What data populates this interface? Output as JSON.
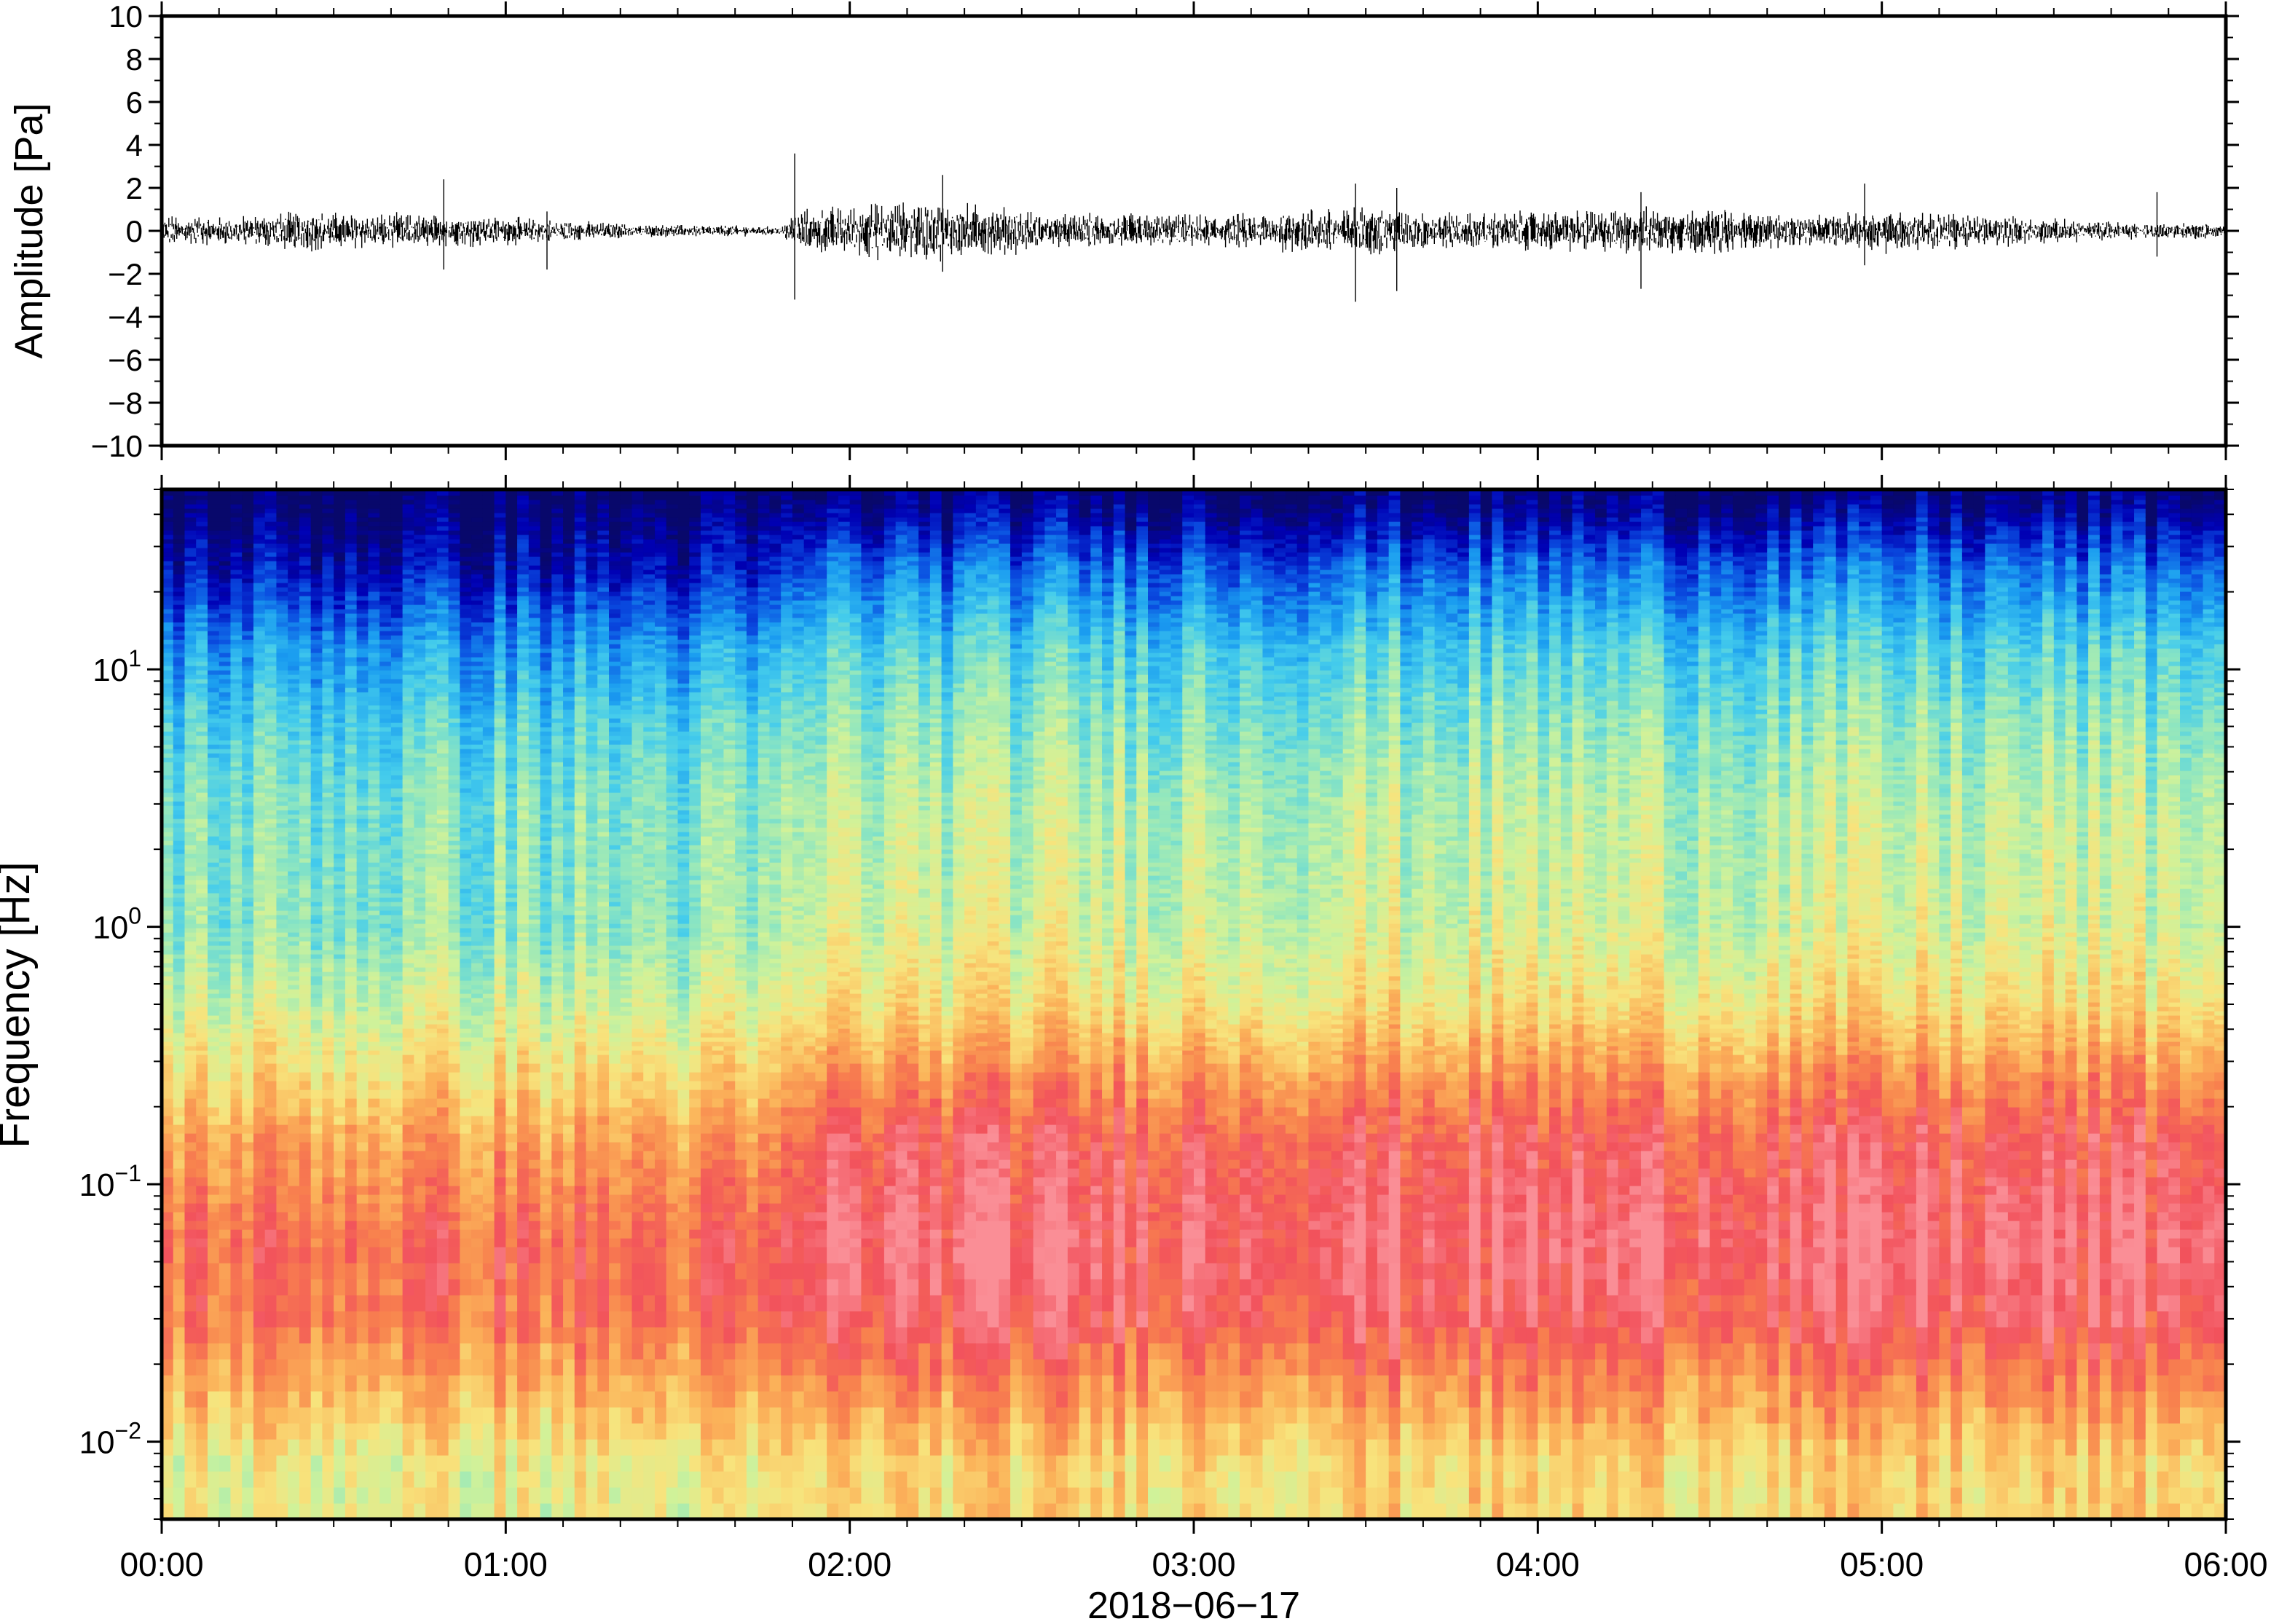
{
  "chart_data": [
    {
      "type": "line",
      "panel": "waveform",
      "xlabel": "",
      "ylabel": "Amplitude [Pa]",
      "ylim": [
        -10,
        10
      ],
      "y_ticks": [
        "10",
        "8",
        "6",
        "4",
        "2",
        "0",
        "−2",
        "−4",
        "−6",
        "−8",
        "−10"
      ],
      "x_range_hours": [
        0,
        6
      ],
      "grid": false,
      "line_color": "#000000",
      "envelope": {
        "times_hours": [
          0.0,
          0.2,
          0.4,
          0.6,
          0.8,
          1.0,
          1.2,
          1.4,
          1.6,
          1.8,
          1.84,
          2.0,
          2.2,
          2.4,
          2.6,
          2.8,
          3.0,
          3.2,
          3.4,
          3.6,
          3.8,
          4.0,
          4.2,
          4.4,
          4.6,
          4.8,
          5.0,
          5.2,
          5.4,
          5.6,
          5.8,
          6.0
        ],
        "amplitude_pa": [
          0.8,
          0.7,
          1.0,
          0.9,
          0.8,
          0.7,
          0.5,
          0.3,
          0.3,
          0.2,
          1.0,
          1.3,
          1.5,
          1.3,
          0.8,
          0.9,
          0.8,
          0.9,
          1.3,
          1.1,
          0.9,
          1.0,
          1.1,
          1.2,
          1.0,
          0.7,
          1.1,
          0.9,
          0.7,
          0.5,
          0.4,
          0.4
        ]
      },
      "spikes": [
        {
          "t_hours": 0.82,
          "max": 2.4,
          "min": -1.8
        },
        {
          "t_hours": 1.12,
          "max": 0.9,
          "min": -1.8
        },
        {
          "t_hours": 1.84,
          "max": 3.6,
          "min": -3.2
        },
        {
          "t_hours": 2.27,
          "max": 2.6,
          "min": -1.9
        },
        {
          "t_hours": 3.47,
          "max": 2.2,
          "min": -3.3
        },
        {
          "t_hours": 3.59,
          "max": 2.0,
          "min": -2.8
        },
        {
          "t_hours": 4.3,
          "max": 1.8,
          "min": -2.7
        },
        {
          "t_hours": 4.95,
          "max": 2.2,
          "min": -1.6
        },
        {
          "t_hours": 5.8,
          "max": 1.8,
          "min": -1.2
        }
      ]
    },
    {
      "type": "heatmap",
      "panel": "spectrogram",
      "xlabel": "2018−06−17",
      "ylabel": "Frequency [Hz]",
      "y_scale": "log",
      "ylim": [
        0.005,
        50
      ],
      "y_ticks": [
        {
          "value": 10,
          "base": "10",
          "exp": "1"
        },
        {
          "value": 1,
          "base": "10",
          "exp": "0"
        },
        {
          "value": 0.1,
          "base": "10",
          "exp": "−1"
        },
        {
          "value": 0.01,
          "base": "10",
          "exp": "−2"
        }
      ],
      "x_tick_labels": [
        "00:00",
        "01:00",
        "02:00",
        "03:00",
        "04:00",
        "05:00",
        "06:00"
      ],
      "x_range_hours": [
        0,
        6
      ],
      "grid": false,
      "colormap": [
        "#08086b",
        "#0000b4",
        "#0a4ce0",
        "#1a9cf0",
        "#44ccec",
        "#8ee6c0",
        "#cff29a",
        "#f8e37c",
        "#fbb45a",
        "#f8824e",
        "#f2525c",
        "#fa8e96"
      ],
      "power_profile": {
        "note_levels": "relative power 0 (dark blue) to 1 (pink)",
        "anchor_freq_hz": [
          45,
          25,
          12,
          6,
          3,
          1,
          0.5,
          0.25,
          0.15,
          0.1,
          0.06,
          0.03,
          0.015,
          0.008
        ],
        "quiet_0000_0150": [
          0.0,
          0.1,
          0.28,
          0.38,
          0.44,
          0.46,
          0.55,
          0.66,
          0.76,
          0.8,
          0.86,
          0.84,
          0.72,
          0.6
        ],
        "active_0150_0600": [
          0.03,
          0.22,
          0.38,
          0.46,
          0.52,
          0.56,
          0.64,
          0.8,
          0.9,
          0.93,
          0.96,
          0.92,
          0.78,
          0.66
        ]
      }
    }
  ]
}
